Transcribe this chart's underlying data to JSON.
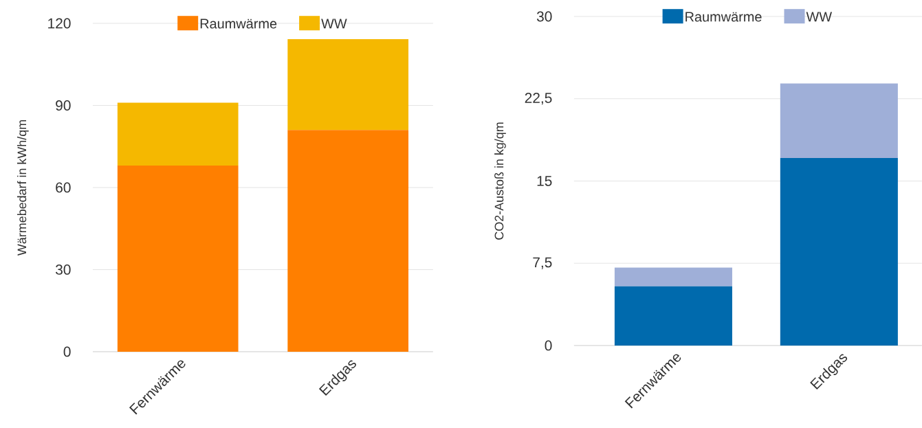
{
  "chart_data": [
    {
      "type": "bar",
      "stacked": true,
      "categories": [
        "Fernwärme",
        "Erdgas"
      ],
      "ylabel": "Wärmebedarf in kWh/qm",
      "ylim": [
        0,
        120
      ],
      "yticks": [
        0,
        30,
        60,
        90,
        120
      ],
      "grid": "y",
      "legend": "top",
      "series": [
        {
          "name": "Raumwärme",
          "color": "#ff7f00",
          "values": [
            68,
            81
          ]
        },
        {
          "name": "WW",
          "color": "#f5b800",
          "values": [
            23,
            33.2
          ]
        }
      ]
    },
    {
      "type": "bar",
      "stacked": true,
      "categories": [
        "Fernwärme",
        "Erdgas"
      ],
      "ylabel": "CO2-Austoß in kg/qm",
      "ylim": [
        0,
        30
      ],
      "yticks": [
        0,
        {
          "value": 7.5,
          "label": "7,5"
        },
        15,
        {
          "value": 22.5,
          "label": "22,5"
        },
        30
      ],
      "grid": "y",
      "legend": "top",
      "series": [
        {
          "name": "Raumwärme",
          "color": "#006aad",
          "values": [
            5.4,
            17.1
          ]
        },
        {
          "name": "WW",
          "color": "#9fafd8",
          "values": [
            1.7,
            6.8
          ]
        }
      ]
    }
  ]
}
